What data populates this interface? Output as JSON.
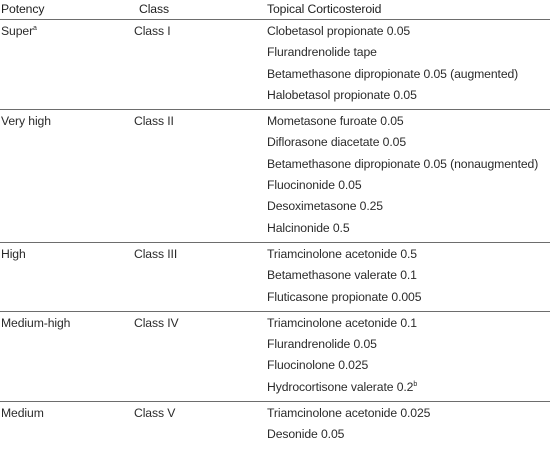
{
  "header": {
    "potency": "Potency",
    "class": "Class",
    "steroid": "Topical Corticosteroid"
  },
  "groups": [
    {
      "potency": "Super",
      "potency_sup": "a",
      "class": "Class I",
      "drugs": [
        {
          "text": "Clobetasol propionate 0.05",
          "sup": ""
        },
        {
          "text": "Flurandrenolide tape",
          "sup": ""
        },
        {
          "text": "Betamethasone dipropionate 0.05 (augmented)",
          "sup": ""
        },
        {
          "text": "Halobetasol propionate 0.05",
          "sup": ""
        }
      ]
    },
    {
      "potency": "Very high",
      "potency_sup": "",
      "class": "Class II",
      "drugs": [
        {
          "text": "Mometasone furoate 0.05",
          "sup": ""
        },
        {
          "text": "Diflorasone diacetate 0.05",
          "sup": ""
        },
        {
          "text": "Betamethasone dipropionate 0.05 (nonaugmented)",
          "sup": ""
        },
        {
          "text": "Fluocinonide 0.05",
          "sup": ""
        },
        {
          "text": "Desoximetasone 0.25",
          "sup": ""
        },
        {
          "text": "Halcinonide 0.5",
          "sup": ""
        }
      ]
    },
    {
      "potency": "High",
      "potency_sup": "",
      "class": "Class III",
      "drugs": [
        {
          "text": "Triamcinolone acetonide 0.5",
          "sup": ""
        },
        {
          "text": "Betamethasone valerate 0.1",
          "sup": ""
        },
        {
          "text": "Fluticasone propionate 0.005",
          "sup": ""
        }
      ]
    },
    {
      "potency": "Medium-high",
      "potency_sup": "",
      "class": "Class IV",
      "drugs": [
        {
          "text": "Triamcinolone acetonide 0.1",
          "sup": ""
        },
        {
          "text": "Flurandrenolide 0.05",
          "sup": ""
        },
        {
          "text": "Fluocinolone 0.025",
          "sup": ""
        },
        {
          "text": "Hydrocortisone valerate 0.2",
          "sup": "b"
        }
      ]
    },
    {
      "potency": "Medium",
      "potency_sup": "",
      "class": "Class V",
      "drugs": [
        {
          "text": "Triamcinolone acetonide 0.025",
          "sup": ""
        },
        {
          "text": "Desonide 0.05",
          "sup": ""
        }
      ]
    }
  ]
}
